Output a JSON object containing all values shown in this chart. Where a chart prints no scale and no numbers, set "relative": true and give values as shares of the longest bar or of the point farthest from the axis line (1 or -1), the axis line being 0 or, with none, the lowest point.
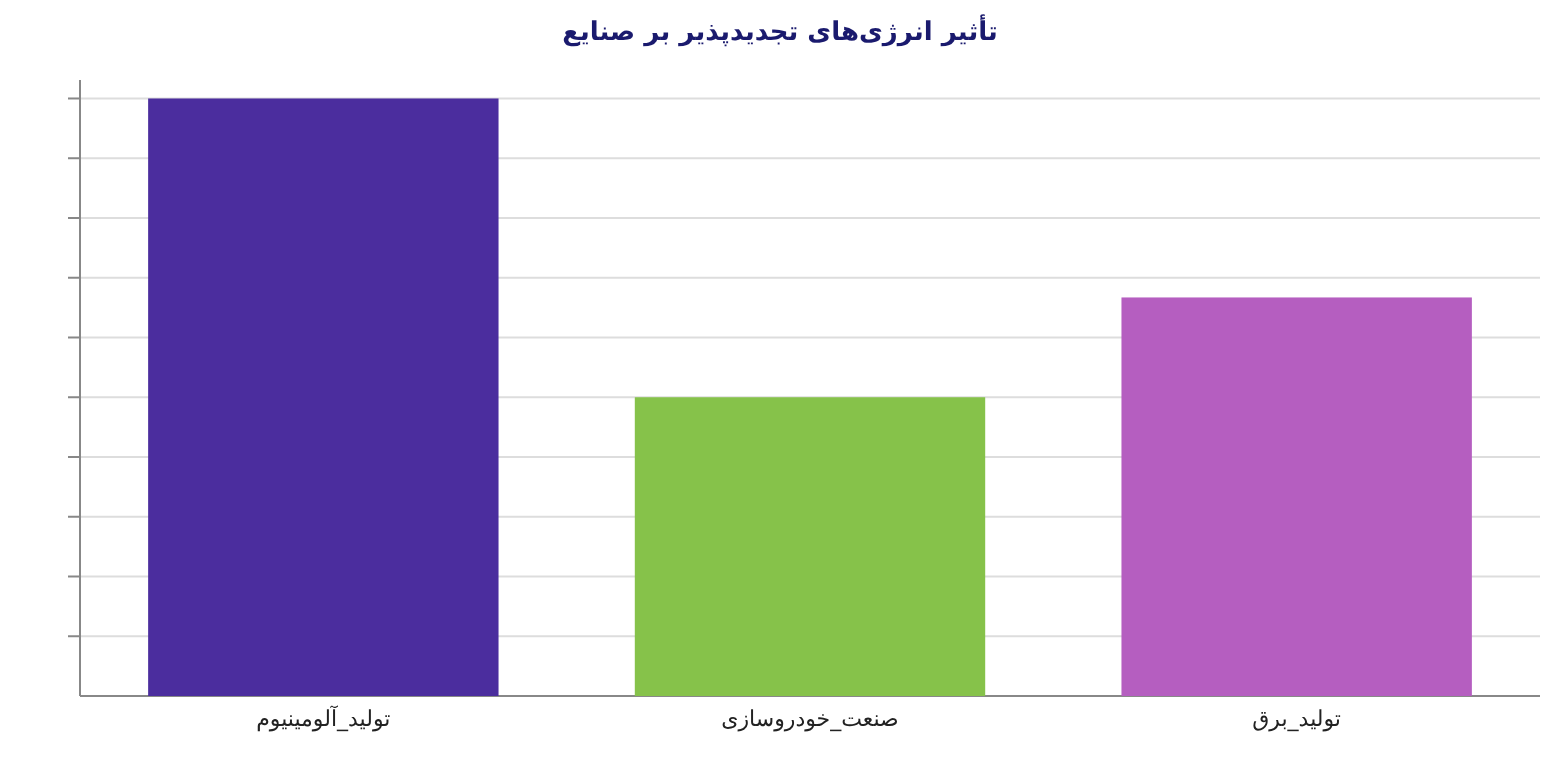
{
  "chart_data": {
    "type": "bar",
    "title": "تأثیر انرژی‌های تجدیدپذیر بر صنایع",
    "categories": [
      "تولید_آلومینیوم",
      "صنعت_خودروسازی",
      "تولید_برق"
    ],
    "values": [
      1,
      0.5,
      0.667
    ],
    "colors": [
      "#4b2d9e",
      "#86c24a",
      "#b55ec0"
    ],
    "relative": true,
    "grid": "y"
  }
}
